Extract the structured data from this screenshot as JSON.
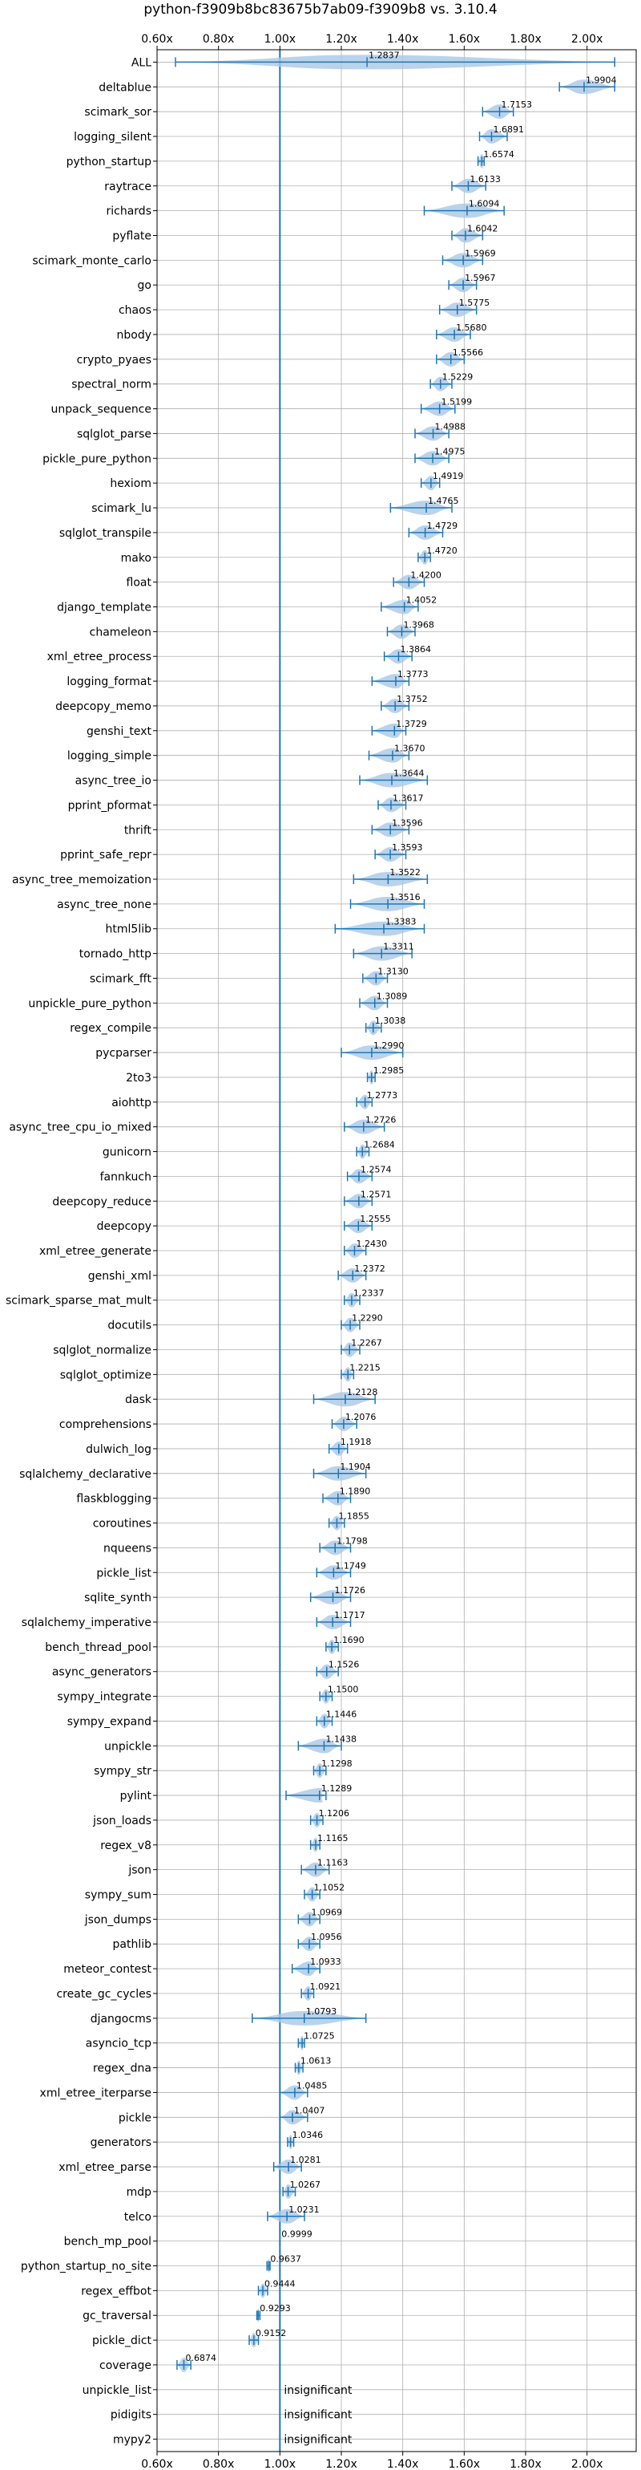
{
  "chart_data": {
    "type": "violin",
    "title": "python-f3909b8bc83675b7ab09-f3909b8 vs. 3.10.4",
    "xlabel": "",
    "ylabel": "",
    "xlim": [
      0.6,
      2.16
    ],
    "xticks": [
      0.6,
      0.8,
      1.0,
      1.2,
      1.4,
      1.6,
      1.8,
      2.0
    ],
    "xtick_labels": [
      "0.60x",
      "0.80x",
      "1.00x",
      "1.20x",
      "1.40x",
      "1.60x",
      "1.80x",
      "2.00x"
    ],
    "reference_line": 1.0,
    "grid": true,
    "colors": {
      "violin": "#a9c8e6",
      "line": "#1f77b4",
      "grid": "#b0b0b0"
    },
    "insignificant_text": "insignificant",
    "benchmarks": [
      {
        "name": "ALL",
        "value": 1.2837,
        "label": "1.2837",
        "min": 0.66,
        "max": 2.09
      },
      {
        "name": "deltablue",
        "value": 1.9904,
        "label": "1.9904",
        "min": 1.91,
        "max": 2.09
      },
      {
        "name": "scimark_sor",
        "value": 1.7153,
        "label": "1.7153",
        "min": 1.66,
        "max": 1.76
      },
      {
        "name": "logging_silent",
        "value": 1.6891,
        "label": "1.6891",
        "min": 1.65,
        "max": 1.74
      },
      {
        "name": "python_startup",
        "value": 1.6574,
        "label": "1.6574",
        "min": 1.645,
        "max": 1.665
      },
      {
        "name": "raytrace",
        "value": 1.6133,
        "label": "1.6133",
        "min": 1.56,
        "max": 1.67
      },
      {
        "name": "richards",
        "value": 1.6094,
        "label": "1.6094",
        "min": 1.47,
        "max": 1.73
      },
      {
        "name": "pyflate",
        "value": 1.6042,
        "label": "1.6042",
        "min": 1.56,
        "max": 1.66
      },
      {
        "name": "scimark_monte_carlo",
        "value": 1.5969,
        "label": "1.5969",
        "min": 1.53,
        "max": 1.66
      },
      {
        "name": "go",
        "value": 1.5967,
        "label": "1.5967",
        "min": 1.55,
        "max": 1.64
      },
      {
        "name": "chaos",
        "value": 1.5775,
        "label": "1.5775",
        "min": 1.52,
        "max": 1.64
      },
      {
        "name": "nbody",
        "value": 1.568,
        "label": "1.5680",
        "min": 1.51,
        "max": 1.62
      },
      {
        "name": "crypto_pyaes",
        "value": 1.5566,
        "label": "1.5566",
        "min": 1.51,
        "max": 1.6
      },
      {
        "name": "spectral_norm",
        "value": 1.5229,
        "label": "1.5229",
        "min": 1.49,
        "max": 1.56
      },
      {
        "name": "unpack_sequence",
        "value": 1.5199,
        "label": "1.5199",
        "min": 1.46,
        "max": 1.57
      },
      {
        "name": "sqlglot_parse",
        "value": 1.4988,
        "label": "1.4988",
        "min": 1.44,
        "max": 1.55
      },
      {
        "name": "pickle_pure_python",
        "value": 1.4975,
        "label": "1.4975",
        "min": 1.44,
        "max": 1.55
      },
      {
        "name": "hexiom",
        "value": 1.4919,
        "label": "1.4919",
        "min": 1.46,
        "max": 1.52
      },
      {
        "name": "scimark_lu",
        "value": 1.4765,
        "label": "1.4765",
        "min": 1.36,
        "max": 1.56
      },
      {
        "name": "sqlglot_transpile",
        "value": 1.4729,
        "label": "1.4729",
        "min": 1.42,
        "max": 1.53
      },
      {
        "name": "mako",
        "value": 1.472,
        "label": "1.4720",
        "min": 1.45,
        "max": 1.49
      },
      {
        "name": "float",
        "value": 1.42,
        "label": "1.4200",
        "min": 1.37,
        "max": 1.47
      },
      {
        "name": "django_template",
        "value": 1.4052,
        "label": "1.4052",
        "min": 1.33,
        "max": 1.45
      },
      {
        "name": "chameleon",
        "value": 1.3968,
        "label": "1.3968",
        "min": 1.35,
        "max": 1.44
      },
      {
        "name": "xml_etree_process",
        "value": 1.3864,
        "label": "1.3864",
        "min": 1.34,
        "max": 1.43
      },
      {
        "name": "logging_format",
        "value": 1.3773,
        "label": "1.3773",
        "min": 1.3,
        "max": 1.42
      },
      {
        "name": "deepcopy_memo",
        "value": 1.3752,
        "label": "1.3752",
        "min": 1.33,
        "max": 1.42
      },
      {
        "name": "genshi_text",
        "value": 1.3729,
        "label": "1.3729",
        "min": 1.3,
        "max": 1.41
      },
      {
        "name": "logging_simple",
        "value": 1.367,
        "label": "1.3670",
        "min": 1.29,
        "max": 1.42
      },
      {
        "name": "async_tree_io",
        "value": 1.3644,
        "label": "1.3644",
        "min": 1.26,
        "max": 1.48
      },
      {
        "name": "pprint_pformat",
        "value": 1.3617,
        "label": "1.3617",
        "min": 1.32,
        "max": 1.41
      },
      {
        "name": "thrift",
        "value": 1.3596,
        "label": "1.3596",
        "min": 1.3,
        "max": 1.42
      },
      {
        "name": "pprint_safe_repr",
        "value": 1.3593,
        "label": "1.3593",
        "min": 1.31,
        "max": 1.41
      },
      {
        "name": "async_tree_memoization",
        "value": 1.3522,
        "label": "1.3522",
        "min": 1.24,
        "max": 1.48
      },
      {
        "name": "async_tree_none",
        "value": 1.3516,
        "label": "1.3516",
        "min": 1.23,
        "max": 1.47
      },
      {
        "name": "html5lib",
        "value": 1.3383,
        "label": "1.3383",
        "min": 1.18,
        "max": 1.47
      },
      {
        "name": "tornado_http",
        "value": 1.3311,
        "label": "1.3311",
        "min": 1.24,
        "max": 1.43
      },
      {
        "name": "scimark_fft",
        "value": 1.313,
        "label": "1.3130",
        "min": 1.27,
        "max": 1.35
      },
      {
        "name": "unpickle_pure_python",
        "value": 1.3089,
        "label": "1.3089",
        "min": 1.26,
        "max": 1.35
      },
      {
        "name": "regex_compile",
        "value": 1.3038,
        "label": "1.3038",
        "min": 1.28,
        "max": 1.33
      },
      {
        "name": "pycparser",
        "value": 1.299,
        "label": "1.2990",
        "min": 1.2,
        "max": 1.4
      },
      {
        "name": "2to3",
        "value": 1.2985,
        "label": "1.2985",
        "min": 1.285,
        "max": 1.31
      },
      {
        "name": "aiohttp",
        "value": 1.2773,
        "label": "1.2773",
        "min": 1.25,
        "max": 1.3
      },
      {
        "name": "async_tree_cpu_io_mixed",
        "value": 1.2726,
        "label": "1.2726",
        "min": 1.21,
        "max": 1.34
      },
      {
        "name": "gunicorn",
        "value": 1.2684,
        "label": "1.2684",
        "min": 1.25,
        "max": 1.29
      },
      {
        "name": "fannkuch",
        "value": 1.2574,
        "label": "1.2574",
        "min": 1.22,
        "max": 1.3
      },
      {
        "name": "deepcopy_reduce",
        "value": 1.2571,
        "label": "1.2571",
        "min": 1.21,
        "max": 1.3
      },
      {
        "name": "deepcopy",
        "value": 1.2555,
        "label": "1.2555",
        "min": 1.21,
        "max": 1.3
      },
      {
        "name": "xml_etree_generate",
        "value": 1.243,
        "label": "1.2430",
        "min": 1.21,
        "max": 1.28
      },
      {
        "name": "genshi_xml",
        "value": 1.2372,
        "label": "1.2372",
        "min": 1.19,
        "max": 1.28
      },
      {
        "name": "scimark_sparse_mat_mult",
        "value": 1.2337,
        "label": "1.2337",
        "min": 1.21,
        "max": 1.26
      },
      {
        "name": "docutils",
        "value": 1.229,
        "label": "1.2290",
        "min": 1.2,
        "max": 1.26
      },
      {
        "name": "sqlglot_normalize",
        "value": 1.2267,
        "label": "1.2267",
        "min": 1.2,
        "max": 1.26
      },
      {
        "name": "sqlglot_optimize",
        "value": 1.2215,
        "label": "1.2215",
        "min": 1.2,
        "max": 1.24
      },
      {
        "name": "dask",
        "value": 1.2128,
        "label": "1.2128",
        "min": 1.11,
        "max": 1.31
      },
      {
        "name": "comprehensions",
        "value": 1.2076,
        "label": "1.2076",
        "min": 1.17,
        "max": 1.25
      },
      {
        "name": "dulwich_log",
        "value": 1.1918,
        "label": "1.1918",
        "min": 1.16,
        "max": 1.22
      },
      {
        "name": "sqlalchemy_declarative",
        "value": 1.1904,
        "label": "1.1904",
        "min": 1.11,
        "max": 1.28
      },
      {
        "name": "flaskblogging",
        "value": 1.189,
        "label": "1.1890",
        "min": 1.14,
        "max": 1.23
      },
      {
        "name": "coroutines",
        "value": 1.1855,
        "label": "1.1855",
        "min": 1.16,
        "max": 1.21
      },
      {
        "name": "nqueens",
        "value": 1.1798,
        "label": "1.1798",
        "min": 1.13,
        "max": 1.23
      },
      {
        "name": "pickle_list",
        "value": 1.1749,
        "label": "1.1749",
        "min": 1.12,
        "max": 1.23
      },
      {
        "name": "sqlite_synth",
        "value": 1.1726,
        "label": "1.1726",
        "min": 1.1,
        "max": 1.23
      },
      {
        "name": "sqlalchemy_imperative",
        "value": 1.1717,
        "label": "1.1717",
        "min": 1.12,
        "max": 1.23
      },
      {
        "name": "bench_thread_pool",
        "value": 1.169,
        "label": "1.1690",
        "min": 1.15,
        "max": 1.19
      },
      {
        "name": "async_generators",
        "value": 1.1526,
        "label": "1.1526",
        "min": 1.12,
        "max": 1.19
      },
      {
        "name": "sympy_integrate",
        "value": 1.15,
        "label": "1.1500",
        "min": 1.13,
        "max": 1.17
      },
      {
        "name": "sympy_expand",
        "value": 1.1446,
        "label": "1.1446",
        "min": 1.12,
        "max": 1.17
      },
      {
        "name": "unpickle",
        "value": 1.1438,
        "label": "1.1438",
        "min": 1.06,
        "max": 1.2
      },
      {
        "name": "sympy_str",
        "value": 1.1298,
        "label": "1.1298",
        "min": 1.11,
        "max": 1.15
      },
      {
        "name": "pylint",
        "value": 1.1289,
        "label": "1.1289",
        "min": 1.02,
        "max": 1.15
      },
      {
        "name": "json_loads",
        "value": 1.1206,
        "label": "1.1206",
        "min": 1.1,
        "max": 1.14
      },
      {
        "name": "regex_v8",
        "value": 1.1165,
        "label": "1.1165",
        "min": 1.1,
        "max": 1.13
      },
      {
        "name": "json",
        "value": 1.1163,
        "label": "1.1163",
        "min": 1.07,
        "max": 1.16
      },
      {
        "name": "sympy_sum",
        "value": 1.1052,
        "label": "1.1052",
        "min": 1.08,
        "max": 1.13
      },
      {
        "name": "json_dumps",
        "value": 1.0969,
        "label": "1.0969",
        "min": 1.06,
        "max": 1.13
      },
      {
        "name": "pathlib",
        "value": 1.0956,
        "label": "1.0956",
        "min": 1.06,
        "max": 1.13
      },
      {
        "name": "meteor_contest",
        "value": 1.0933,
        "label": "1.0933",
        "min": 1.04,
        "max": 1.13
      },
      {
        "name": "create_gc_cycles",
        "value": 1.0921,
        "label": "1.0921",
        "min": 1.07,
        "max": 1.11
      },
      {
        "name": "djangocms",
        "value": 1.0793,
        "label": "1.0793",
        "min": 0.91,
        "max": 1.28
      },
      {
        "name": "asyncio_tcp",
        "value": 1.0725,
        "label": "1.0725",
        "min": 1.06,
        "max": 1.08
      },
      {
        "name": "regex_dna",
        "value": 1.0613,
        "label": "1.0613",
        "min": 1.05,
        "max": 1.075
      },
      {
        "name": "xml_etree_iterparse",
        "value": 1.0485,
        "label": "1.0485",
        "min": 1.0,
        "max": 1.09
      },
      {
        "name": "pickle",
        "value": 1.0407,
        "label": "1.0407",
        "min": 1.0,
        "max": 1.09
      },
      {
        "name": "generators",
        "value": 1.0346,
        "label": "1.0346",
        "min": 1.025,
        "max": 1.045
      },
      {
        "name": "xml_etree_parse",
        "value": 1.0281,
        "label": "1.0281",
        "min": 0.98,
        "max": 1.07
      },
      {
        "name": "mdp",
        "value": 1.0267,
        "label": "1.0267",
        "min": 1.01,
        "max": 1.05
      },
      {
        "name": "telco",
        "value": 1.0231,
        "label": "1.0231",
        "min": 0.96,
        "max": 1.08
      },
      {
        "name": "bench_mp_pool",
        "value": 0.9999,
        "label": "0.9999",
        "min": 0.9999,
        "max": 0.9999
      },
      {
        "name": "python_startup_no_site",
        "value": 0.9637,
        "label": "0.9637",
        "min": 0.958,
        "max": 0.968
      },
      {
        "name": "regex_effbot",
        "value": 0.9444,
        "label": "0.9444",
        "min": 0.93,
        "max": 0.96
      },
      {
        "name": "gc_traversal",
        "value": 0.9293,
        "label": "0.9293",
        "min": 0.925,
        "max": 0.935
      },
      {
        "name": "pickle_dict",
        "value": 0.9152,
        "label": "0.9152",
        "min": 0.9,
        "max": 0.93
      },
      {
        "name": "coverage",
        "value": 0.6874,
        "label": "0.6874",
        "min": 0.665,
        "max": 0.71
      },
      {
        "name": "unpickle_list",
        "value": null,
        "label": "insignificant",
        "min": null,
        "max": null
      },
      {
        "name": "pidigits",
        "value": null,
        "label": "insignificant",
        "min": null,
        "max": null
      },
      {
        "name": "mypy2",
        "value": null,
        "label": "insignificant",
        "min": null,
        "max": null
      }
    ]
  }
}
